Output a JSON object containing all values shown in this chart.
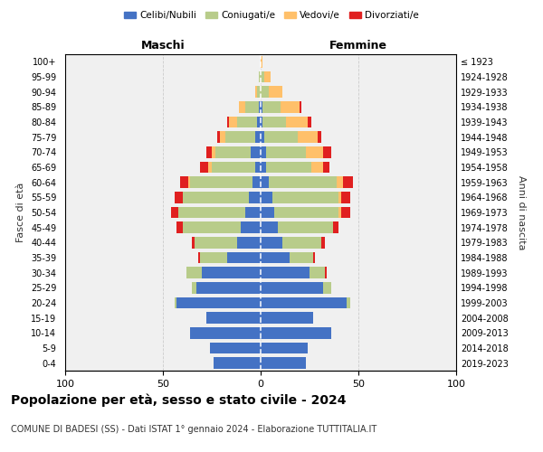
{
  "age_groups": [
    "100+",
    "95-99",
    "90-94",
    "85-89",
    "80-84",
    "75-79",
    "70-74",
    "65-69",
    "60-64",
    "55-59",
    "50-54",
    "45-49",
    "40-44",
    "35-39",
    "30-34",
    "25-29",
    "20-24",
    "15-19",
    "10-14",
    "5-9",
    "0-4"
  ],
  "birth_years": [
    "≤ 1923",
    "1924-1928",
    "1929-1933",
    "1934-1938",
    "1939-1943",
    "1944-1948",
    "1949-1953",
    "1954-1958",
    "1959-1963",
    "1964-1968",
    "1969-1973",
    "1974-1978",
    "1979-1983",
    "1984-1988",
    "1989-1993",
    "1994-1998",
    "1999-2003",
    "2004-2008",
    "2009-2013",
    "2014-2018",
    "2019-2023"
  ],
  "maschi": {
    "celibi": [
      0,
      0,
      0,
      1,
      2,
      3,
      5,
      3,
      4,
      6,
      8,
      10,
      12,
      17,
      30,
      33,
      43,
      28,
      36,
      26,
      24
    ],
    "coniugati": [
      0,
      1,
      2,
      7,
      10,
      15,
      18,
      22,
      32,
      34,
      34,
      30,
      22,
      14,
      8,
      2,
      1,
      0,
      0,
      0,
      0
    ],
    "vedovi": [
      0,
      0,
      1,
      3,
      4,
      3,
      2,
      2,
      1,
      0,
      0,
      0,
      0,
      0,
      0,
      0,
      0,
      0,
      0,
      0,
      0
    ],
    "divorziati": [
      0,
      0,
      0,
      0,
      1,
      1,
      3,
      4,
      4,
      4,
      4,
      3,
      1,
      1,
      0,
      0,
      0,
      0,
      0,
      0,
      0
    ]
  },
  "femmine": {
    "nubili": [
      0,
      0,
      0,
      1,
      1,
      2,
      3,
      3,
      4,
      6,
      7,
      9,
      11,
      15,
      25,
      32,
      44,
      27,
      36,
      24,
      23
    ],
    "coniugate": [
      0,
      2,
      4,
      9,
      12,
      17,
      20,
      23,
      35,
      34,
      33,
      28,
      20,
      12,
      8,
      4,
      2,
      0,
      0,
      0,
      0
    ],
    "vedove": [
      1,
      3,
      7,
      10,
      11,
      10,
      9,
      6,
      3,
      1,
      1,
      0,
      0,
      0,
      0,
      0,
      0,
      0,
      0,
      0,
      0
    ],
    "divorziate": [
      0,
      0,
      0,
      1,
      2,
      2,
      4,
      3,
      5,
      5,
      5,
      3,
      2,
      1,
      1,
      0,
      0,
      0,
      0,
      0,
      0
    ]
  },
  "colors": {
    "celibi_nubili": "#4472c4",
    "coniugati": "#b8cc8a",
    "vedovi": "#ffc06a",
    "divorziati": "#e02020"
  },
  "xlim": 100,
  "title": "Popolazione per età, sesso e stato civile - 2024",
  "subtitle": "COMUNE DI BADESI (SS) - Dati ISTAT 1° gennaio 2024 - Elaborazione TUTTITALIA.IT",
  "xlabel_left": "Maschi",
  "xlabel_right": "Femmine",
  "ylabel": "Fasce di età",
  "ylabel_right": "Anni di nascita",
  "bg_color": "#f0f0f0",
  "grid_color": "#cccccc"
}
